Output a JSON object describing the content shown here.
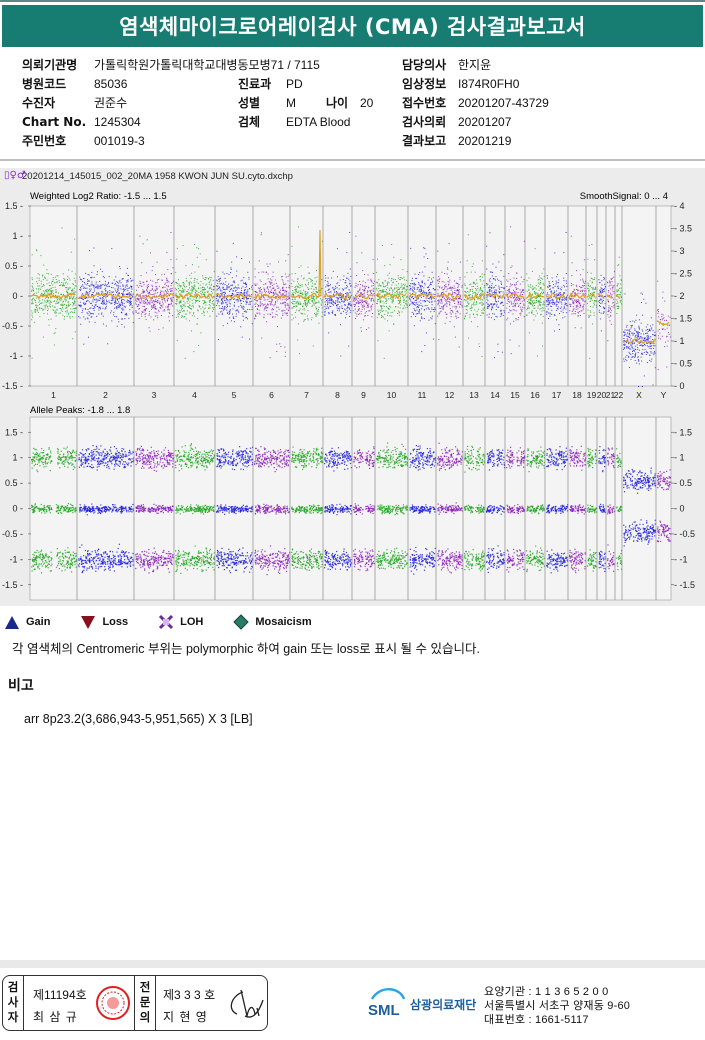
{
  "header": {
    "title": "염색체마이크로어레이검사 (CMA) 검사결과보고서"
  },
  "info": [
    {
      "label": "의뢰기관명",
      "value": "가톨릭학원가톨릭대학교대병동모병71 / 7115",
      "col": 0,
      "row": 0
    },
    {
      "label": "병원코드",
      "value": "85036",
      "col": 0,
      "row": 1
    },
    {
      "label": "수진자",
      "value": "권준수",
      "col": 0,
      "row": 2
    },
    {
      "label": "Chart No.",
      "value": "1245304",
      "col": 0,
      "row": 3
    },
    {
      "label": "주민번호",
      "value": "001019-3",
      "col": 0,
      "row": 4
    },
    {
      "label": "진료과",
      "value": "PD",
      "col": 1,
      "row": 1
    },
    {
      "label": "성별",
      "value": "M",
      "col": 1,
      "row": 2
    },
    {
      "label": "검체",
      "value": "EDTA Blood",
      "col": 1,
      "row": 3
    },
    {
      "label": "나이",
      "value": "20",
      "col": 2,
      "row": 2
    },
    {
      "label": "담당의사",
      "value": "한지윤",
      "col": 3,
      "row": 0
    },
    {
      "label": "임상정보",
      "value": "I874R0FH0",
      "col": 3,
      "row": 1
    },
    {
      "label": "접수번호",
      "value": "20201207-43729",
      "col": 3,
      "row": 2
    },
    {
      "label": "검사의뢰",
      "value": "20201207",
      "col": 3,
      "row": 3
    },
    {
      "label": "결과보고",
      "value": "20201219",
      "col": 3,
      "row": 4
    }
  ],
  "plot": {
    "file_name": "20201214_145015_002_20MA 1958 KWON JUN SU.cyto.dxchp",
    "upper_label": "Weighted Log2 Ratio: -1.5 ... 1.5",
    "upper_right_label": "SmoothSignal: 0 ... 4",
    "lower_label": "Allele Peaks: -1.8 ... 1.8",
    "upper_left_ticks": [
      "1.5",
      "1",
      "0.5",
      "0",
      "-0.5",
      "-1",
      "-1.5"
    ],
    "upper_right_ticks": [
      "4",
      "3.5",
      "3",
      "2.5",
      "2",
      "1.5",
      "1",
      "0.5",
      "0"
    ],
    "lower_left_ticks": [
      "1.5",
      "1",
      "0.5",
      "0",
      "-0.5",
      "-1",
      "-1.5"
    ],
    "lower_right_ticks": [
      "1.5",
      "1",
      "0.5",
      "0",
      "-0.5",
      "-1",
      "-1.5"
    ],
    "chromosomes": [
      "1",
      "2",
      "3",
      "4",
      "5",
      "6",
      "7",
      "8",
      "9",
      "10",
      "11",
      "12",
      "13",
      "14",
      "15",
      "16",
      "17",
      "18",
      "19",
      "20",
      "21",
      "22",
      "X",
      "Y"
    ],
    "colors": {
      "green": "#1fa51f",
      "blue": "#1f1fd6",
      "purple": "#8a1fb8",
      "smooth": "#e0a020"
    }
  },
  "legend": [
    {
      "label": "Gain",
      "icon": "triangle-up-icon",
      "color": "#1a2a8a"
    },
    {
      "label": "Loss",
      "icon": "triangle-down-icon",
      "color": "#8a1020"
    },
    {
      "label": "LOH",
      "icon": "x-mark-icon",
      "color": "#6a2a9a"
    },
    {
      "label": "Mosaicism",
      "icon": "diamond-icon",
      "color": "#2a7a6a"
    }
  ],
  "note": "각 염색체의 Centromeric 부위는 polymorphic 하여 gain 또는 loss로 표시 될 수 있습니다.",
  "remarks": {
    "heading": "비고",
    "value": "arr 8p23.2(3,686,943-5,951,565) X 3 [LB]"
  },
  "signatures": {
    "inspector_role": "검사자",
    "inspector_no": "제11194호",
    "inspector_name": "최 삼 규",
    "specialist_role": "전문의",
    "specialist_no": "제3 3 3 호",
    "specialist_name": "지 현 영"
  },
  "organization": {
    "logo": "SML",
    "name": "삼광의료재단",
    "care_no": "요양기관 : 1 1 3 6 5 2 0 0",
    "address": "서울특별시 서초구 양재동 9-60",
    "phone": "대표번호 : 1661-5117"
  }
}
